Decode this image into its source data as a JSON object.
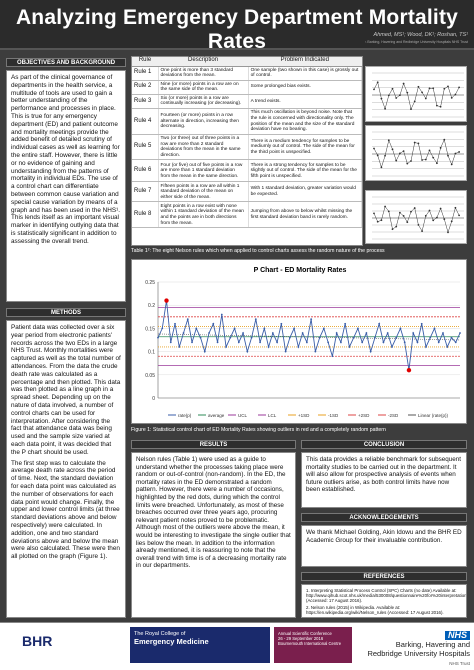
{
  "header": {
    "title": "Analyzing Emergency Department Mortality Rates",
    "authors": "Ahmed, MS¹; Wood, DK¹; Roshan, TS¹",
    "affiliation": "¹ Barking, Havering and Redbridge University Hospitals NHS Trust"
  },
  "objectives": {
    "heading": "OBJECTIVES AND BACKGROUND",
    "text": "As part of the clinical governance of departments in the health service, a multitude of tools are used to gain a better understanding of the performance and processes in place. This is true for any emergency department (ED) and patient outcome and mortality meetings provide the added benefit of detailed scrutiny of individual cases as well as learning for the entire staff. However, there is little or no evidence of gaining and understanding from the patterns of mortality in individual EDs. The use of a control chart can differentiate between common cause variation and special cause variation by means of a graph and has been used in the NHS¹. This lends itself as an important visual marker in identifying outlying data that is statistically significant in addition to assessing the overall trend."
  },
  "methods": {
    "heading": "METHODS",
    "para1": "Patient data was collected over a six year period from electronic patients' records across the two EDs in a large NHS Trust. Monthly mortalities were captured as well as the total number of attendances. From the data the crude death rate was calculated as a percentage and then plotted. This data was then plotted as a line graph in a spread sheet. Depending up on the nature of data involved, a number of control charts can be used for interpretation. After considering the fact that attendance data was being used and the sample size varied at each data point, it was decided that the P chart should be used.",
    "para2": "The first step was to calculate the average death rate across the period of time. Next, the standard deviation for each data point was calculated as the number of observations for each data point would change. Finally, the upper and lower control limits (at three standard deviations above and below respectively) were calculated. In addition, one and two standard deviations above and below the mean were also calculated. These were then all plotted on the graph (Figure 1)."
  },
  "rules_table": {
    "headers": [
      "Rule",
      "Description",
      "Problem Indicated"
    ],
    "rows": [
      {
        "rule": "Rule 1",
        "desc": "One point is more than 3 standard deviations from the mean.",
        "problem": "One sample (two shown in this case) is grossly out of control."
      },
      {
        "rule": "Rule 2",
        "desc": "Nine (or more) points in a row are on the same side of the mean.",
        "problem": "Some prolonged bias exists."
      },
      {
        "rule": "Rule 3",
        "desc": "Six (or more) points in a row are continually increasing (or decreasing).",
        "problem": "A trend exists."
      },
      {
        "rule": "Rule 4",
        "desc": "Fourteen (or more) points in a row alternate in direction, increasing then decreasing.",
        "problem": "This much oscillation is beyond noise. Note that the rule is concerned with directionality only. The position of the mean and the size of the standard deviation have no bearing."
      },
      {
        "rule": "Rule 5",
        "desc": "Two (or three) out of three points in a row are more than 2 standard deviations from the mean in the same direction.",
        "problem": "There is a medium tendency for samples to be mediumly out of control. The side of the mean for the third point is unspecified."
      },
      {
        "rule": "Rule 6",
        "desc": "Four (or five) out of five points in a row are more than 1 standard deviation from the mean in the same direction.",
        "problem": "There is a strong tendency for samples to be slightly out of control. The side of the mean for the fifth point is unspecified."
      },
      {
        "rule": "Rule 7",
        "desc": "Fifteen points in a row are all within 1 standard deviation of the mean on either side of the mean.",
        "problem": "With 1 standard deviation, greater variation would be expected."
      },
      {
        "rule": "Rule 8",
        "desc": "Eight points in a row exist with none within 1 standard deviation of the mean and the points are in both directions from the mean.",
        "problem": "Jumping from above to below whilst missing the first standard deviation band is rarely random."
      }
    ],
    "caption": "Table 1²: The eight Nelson rules which when applied to control charts assess the random nature of the process"
  },
  "chart_data": {
    "type": "line",
    "title": "P Chart - ED Mortality Rates",
    "xlabel": "",
    "ylabel": "",
    "ylim": [
      0,
      0.25
    ],
    "y_ticks": [
      "0.25",
      "0.2",
      "0.15",
      "0.1",
      "0.05",
      "0"
    ],
    "legend": [
      "rate(p)",
      "average",
      "UCL",
      "LCL",
      "+1SD",
      "-1SD",
      "+2SD",
      "-2SD",
      "Linear (rate(p))"
    ],
    "legend_position": "bottom",
    "ucl": 0.195,
    "lcl": 0.07,
    "plus2sd": 0.175,
    "minus2sd": 0.09,
    "plus1sd": 0.154,
    "minus1sd": 0.11,
    "average": 0.132,
    "trend": [
      0.138,
      0.125
    ],
    "rate": [
      0.13,
      0.15,
      0.21,
      0.12,
      0.16,
      0.11,
      0.14,
      0.17,
      0.12,
      0.15,
      0.13,
      0.1,
      0.14,
      0.16,
      0.12,
      0.18,
      0.11,
      0.13,
      0.15,
      0.12,
      0.14,
      0.1,
      0.13,
      0.17,
      0.12,
      0.15,
      0.11,
      0.14,
      0.12,
      0.16,
      0.1,
      0.13,
      0.15,
      0.11,
      0.14,
      0.12,
      0.17,
      0.1,
      0.13,
      0.15,
      0.12,
      0.09,
      0.14,
      0.12,
      0.16,
      0.11,
      0.13,
      0.15,
      0.12,
      0.14,
      0.1,
      0.13,
      0.16,
      0.12,
      0.14,
      0.11,
      0.13,
      0.15,
      0.12,
      0.06,
      0.14,
      0.12,
      0.16,
      0.11,
      0.13,
      0.15,
      0.12,
      0.14,
      0.11,
      0.13,
      0.12,
      0.14
    ],
    "outliers": [
      2,
      59
    ],
    "caption": "Figure 1: Statistical control chart of ED Mortality Rates showing outliers in red and a completely random pattern"
  },
  "results": {
    "heading": "RESULTS",
    "text": "Nelson rules (Table 1) were used as a guide to understand whether the processes taking place were random or out-of-control (non-random). In the ED, the mortality rates in the ED demonstrated a random pattern. However, there were a number of occasions, highlighted by the red dots, during which the control limits were breached. Unfortunately, as most of these breaches occurred over three years ago, procuring relevant patient notes proved to be problematic. Although most of the outliers were above the mean, it would be interesting to investigate the single outlier that lies below the mean. In addition to the information already mentioned, it is reassuring to note that the overall trend with time is of a decreasing mortality rate in our departments."
  },
  "conclusion": {
    "heading": "CONCLUSION",
    "text": "This data provides a reliable benchmark for subsequent mortality studies to be carried out in the department. It will also allow for prospective analysis of events when future outliers arise, as both control limits have now been established."
  },
  "acknowledgements": {
    "heading": "ACKNOWLEDGEMENTS",
    "text": "We thank Michael Golding, Akin Idowu and the BHR ED Academic Group for their invaluable contribution."
  },
  "references": {
    "heading": "REFERENCES",
    "items": [
      "1. Interpreting Statistical Process Control (SPC) Charts (no date) Available at: http://www.qihub.scot.nhs.uk/media/530008/questionnaire%20for%20interpretation.pdf (Accessed: 17 August 2016).",
      "2. Nelson rules (2015) in Wikipedia. Available at: https://en.wikipedia.org/wiki/Nelson_rules (Accessed: 17 August 2016)."
    ]
  },
  "footer": {
    "logo1": "BHR",
    "rcem_line1": "The Royal College of",
    "rcem_line2": "Emergency Medicine",
    "conf_line1": "Annual Scientific Conference",
    "conf_line2": "26 - 29 September 2016",
    "conf_line3": "Bournemouth International Centre",
    "trust_line1": "Barking, Havering and",
    "trust_line2": "Redbridge University Hospitals",
    "trust_line3": "NHS Trust",
    "nhs": "NHS"
  },
  "colors": {
    "rate": "#3a5ea8",
    "average": "#2e8b57",
    "limits": "#9b3a9b",
    "sd1": "#e8a020",
    "sd2": "#d44",
    "outlier": "#e00000"
  }
}
